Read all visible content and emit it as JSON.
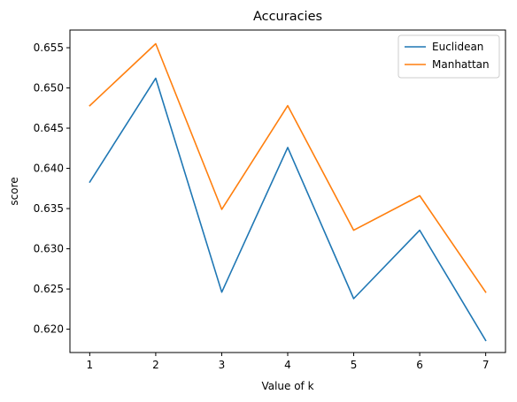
{
  "chart_data": {
    "type": "line",
    "title": "Accuracies",
    "xlabel": "Value of k",
    "ylabel": "score",
    "x": [
      1,
      2,
      3,
      4,
      5,
      6,
      7
    ],
    "xlim": [
      0.7,
      7.3
    ],
    "ylim": [
      0.6171,
      0.6572
    ],
    "xticks": [
      1,
      2,
      3,
      4,
      5,
      6,
      7
    ],
    "yticks": [
      0.62,
      0.625,
      0.63,
      0.635,
      0.64,
      0.645,
      0.65,
      0.655
    ],
    "ytick_labels": [
      "0.620",
      "0.625",
      "0.630",
      "0.635",
      "0.640",
      "0.645",
      "0.650",
      "0.655"
    ],
    "grid": false,
    "legend_position": "top-right",
    "series": [
      {
        "name": "Euclidean",
        "color": "#1f77b4",
        "values": [
          0.6383,
          0.6512,
          0.6246,
          0.6426,
          0.6238,
          0.6323,
          0.6186
        ]
      },
      {
        "name": "Manhattan",
        "color": "#ff7f0e",
        "values": [
          0.6478,
          0.6555,
          0.6349,
          0.6478,
          0.6323,
          0.6366,
          0.6246
        ]
      }
    ]
  }
}
